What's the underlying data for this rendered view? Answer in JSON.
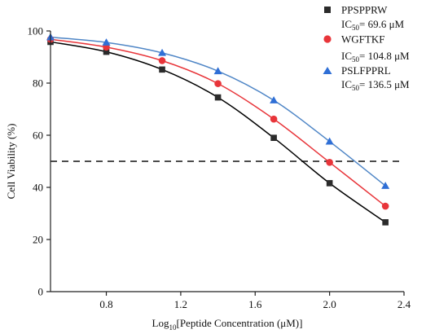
{
  "chart_data": {
    "type": "line",
    "xlabel_prefix": "Log",
    "xlabel_sub": "10",
    "xlabel_suffix": "[Peptide Concentration (μM)]",
    "ylabel": "Cell Viability (%)",
    "xlim": [
      0.5,
      2.4
    ],
    "ylim": [
      0,
      100
    ],
    "xticks": [
      "0.8",
      "1.2",
      "1.6",
      "2.0",
      "2.4"
    ],
    "xtick_values": [
      0.8,
      1.2,
      1.6,
      2.0,
      2.4
    ],
    "yticks": [
      "0",
      "20",
      "40",
      "60",
      "80",
      "100"
    ],
    "ytick_values": [
      0,
      20,
      40,
      60,
      80,
      100
    ],
    "threshold": 50,
    "legend_position": "top-right",
    "x": [
      0.5,
      0.8,
      1.1,
      1.4,
      1.7,
      2.0,
      2.3
    ],
    "series": [
      {
        "name": "PPSPPRW",
        "ic50_prefix": "IC",
        "ic50_sub": "50",
        "ic50_value": "= 69.6 μM",
        "marker": "square",
        "color": "#2b2b2b",
        "line_color": "#000000",
        "values": [
          95.8,
          92.0,
          85.2,
          74.5,
          59.0,
          41.6,
          26.6
        ]
      },
      {
        "name": "WGFTKF",
        "ic50_prefix": "IC",
        "ic50_sub": "50",
        "ic50_value": "= 104.8 μM",
        "marker": "circle",
        "color": "#e8353a",
        "line_color": "#e8353a",
        "values": [
          96.8,
          93.8,
          88.6,
          79.8,
          66.2,
          49.6,
          32.8
        ]
      },
      {
        "name": "PSLFPPRL",
        "ic50_prefix": "IC",
        "ic50_sub": "50",
        "ic50_value": "= 136.5 μM",
        "marker": "triangle",
        "color": "#2f6fd6",
        "line_color": "#4f86c6",
        "values": [
          97.6,
          95.6,
          91.6,
          84.6,
          73.4,
          57.6,
          40.6
        ]
      }
    ]
  }
}
